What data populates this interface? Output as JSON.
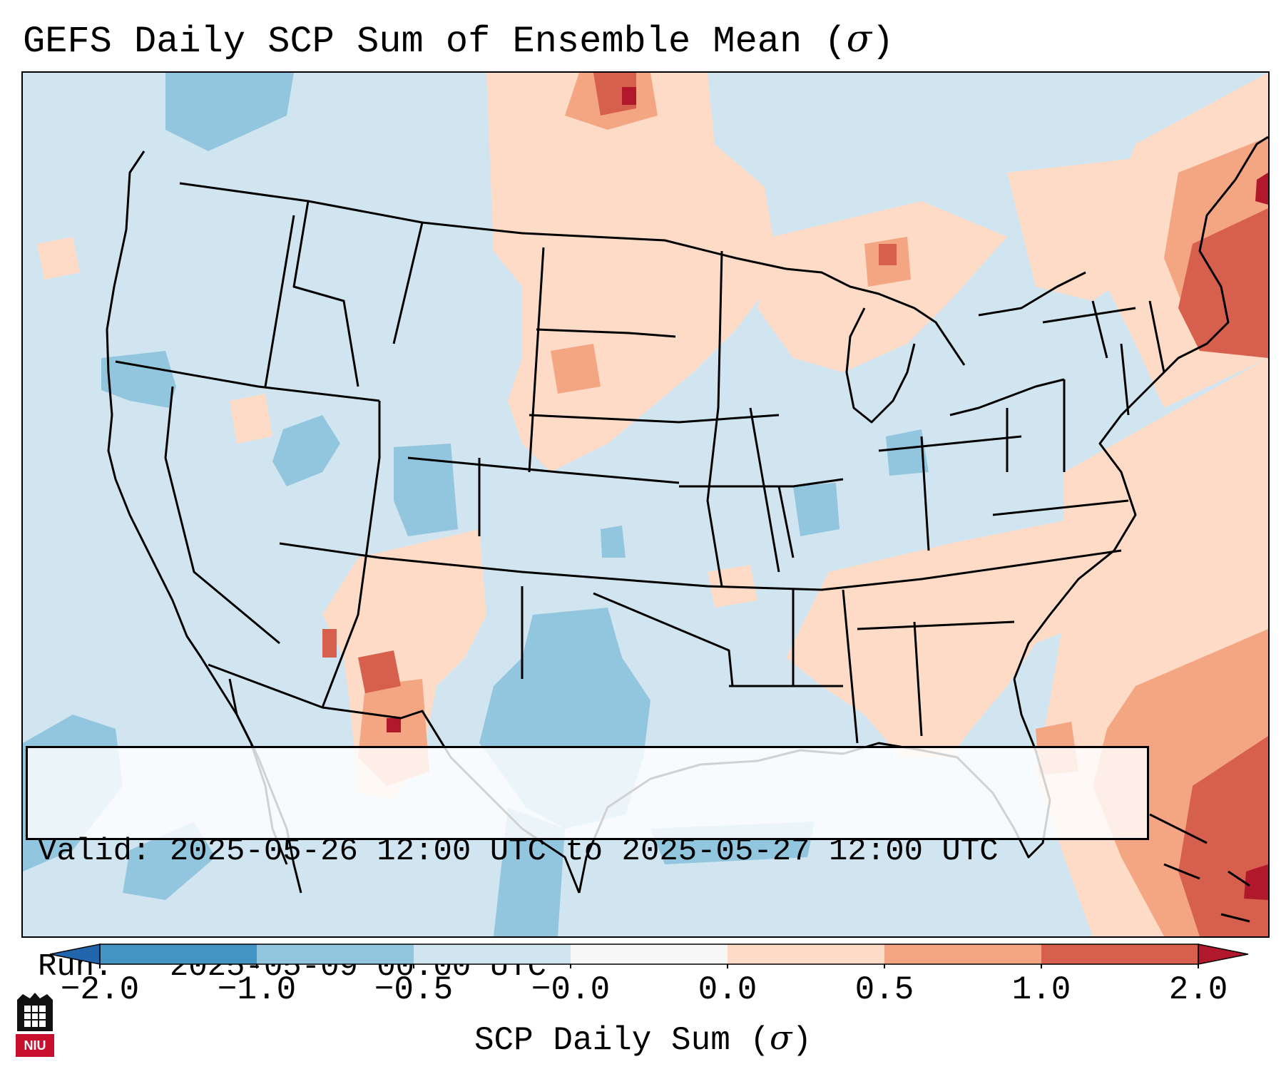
{
  "title": "GEFS Daily SCP Sum of Ensemble Mean (",
  "title_symbol": "σ",
  "title_close": ")",
  "info": {
    "valid_line": "Valid: 2025-05-26 12:00 UTC to 2025-05-27 12:00 UTC",
    "run_line": "Run:   2025-05-09 00:00 UTC"
  },
  "colorbar": {
    "label_prefix": "SCP Daily Sum (",
    "label_symbol": "σ",
    "label_suffix": ")",
    "ticks": [
      "−2.0",
      "−1.0",
      "−0.5",
      "−0.0",
      "0.0",
      "0.5",
      "1.0",
      "2.0"
    ],
    "bins": [
      {
        "range": "< -2.0",
        "color": "#2166ac"
      },
      {
        "range": "-2.0 to -1.0",
        "color": "#4393c3"
      },
      {
        "range": "-1.0 to -0.5",
        "color": "#92c5de"
      },
      {
        "range": "-0.5 to -0.0",
        "color": "#d1e5f0"
      },
      {
        "range": "-0.0 to 0.0",
        "color": "#f7f7f7"
      },
      {
        "range": "0.0 to 0.5",
        "color": "#fddbc7"
      },
      {
        "range": "0.5 to 1.0",
        "color": "#f4a582"
      },
      {
        "range": "1.0 to 2.0",
        "color": "#d6604d"
      },
      {
        "range": "> 2.0",
        "color": "#b2182b"
      }
    ]
  },
  "logo": {
    "text": "NIU",
    "name": "Northern Illinois University"
  },
  "map": {
    "background_color": "#d1e5f0",
    "boundary_color": "#000000",
    "region": "Contiguous United States"
  }
}
